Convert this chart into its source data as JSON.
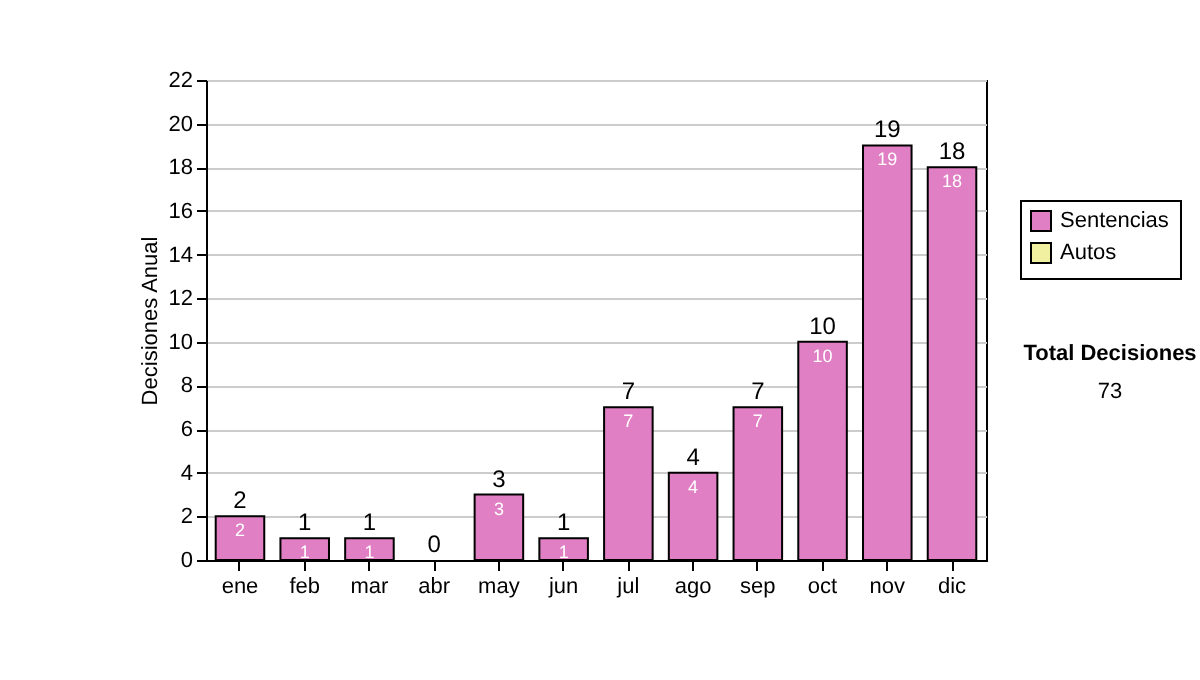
{
  "chart_data": {
    "type": "bar",
    "ylabel": "Decisiones Anual",
    "categories": [
      "ene",
      "feb",
      "mar",
      "abr",
      "may",
      "jun",
      "jul",
      "ago",
      "sep",
      "oct",
      "nov",
      "dic"
    ],
    "series": [
      {
        "name": "Sentencias",
        "color": "#e07fc4",
        "values": [
          2,
          1,
          1,
          0,
          3,
          1,
          7,
          4,
          7,
          10,
          19,
          18
        ],
        "value_labels": [
          "2",
          "1",
          "1",
          null,
          "3",
          "1",
          "7",
          "4",
          "7",
          "10",
          "19",
          "18"
        ]
      },
      {
        "name": "Autos",
        "color": "#f0f0a0",
        "values": [
          0,
          0,
          0,
          0,
          0,
          0,
          0,
          0,
          0,
          0,
          0,
          0
        ]
      }
    ],
    "stacked": true,
    "totals": [
      "2",
      "1",
      "1",
      "0",
      "3",
      "1",
      "7",
      "4",
      "7",
      "10",
      "19",
      "18"
    ],
    "ylim": [
      0,
      22
    ],
    "yticks": [
      0,
      2,
      4,
      6,
      8,
      10,
      12,
      14,
      16,
      18,
      20,
      22
    ],
    "grid": "y",
    "legend": "right",
    "annotations": [
      "Total Decisiones",
      "73"
    ]
  }
}
